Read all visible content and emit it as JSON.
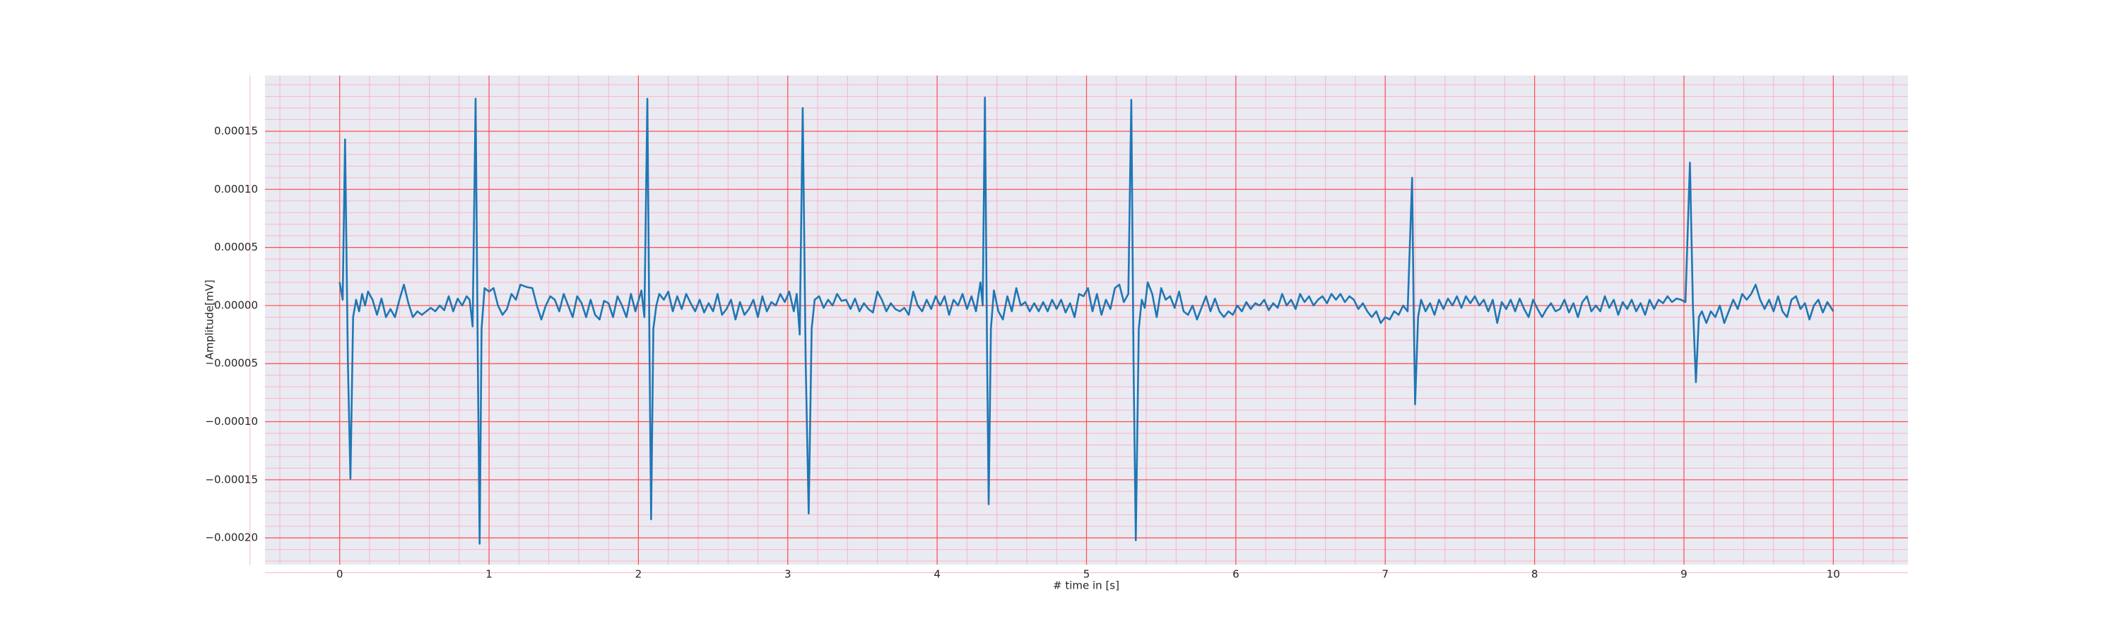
{
  "chart_data": {
    "type": "line",
    "x_label": "# time in [s]",
    "y_label": "Amplitude[mV]",
    "color": "#1f77b4",
    "grid": true,
    "grid_color": "#ff4d4d",
    "minor_grid_color": "#f7b6c8",
    "background": "#eaeaf2",
    "xlim": [
      -0.5,
      10.5
    ],
    "ylim": [
      -0.000223,
      0.000198
    ],
    "xticks": [
      0,
      1,
      2,
      3,
      4,
      5,
      6,
      7,
      8,
      9,
      10
    ],
    "yticks": [
      {
        "value": -0.0002,
        "label": "−0.00020"
      },
      {
        "value": -0.00015,
        "label": "−0.00015"
      },
      {
        "value": -0.0001,
        "label": "−0.00010"
      },
      {
        "value": -5e-05,
        "label": "−0.00005"
      },
      {
        "value": 0,
        "label": "0.00000"
      },
      {
        "value": 5e-05,
        "label": "0.00005"
      },
      {
        "value": 0.0001,
        "label": "0.00010"
      },
      {
        "value": 0.00015,
        "label": "0.00015"
      }
    ],
    "x": [
      0,
      0.02,
      0.036,
      0.055,
      0.072,
      0.09,
      0.11,
      0.13,
      0.15,
      0.17,
      0.19,
      0.22,
      0.25,
      0.28,
      0.31,
      0.34,
      0.37,
      0.4,
      0.43,
      0.46,
      0.49,
      0.52,
      0.55,
      0.58,
      0.61,
      0.64,
      0.67,
      0.7,
      0.73,
      0.76,
      0.79,
      0.82,
      0.85,
      0.87,
      0.89,
      0.91,
      0.925,
      0.937,
      0.95,
      0.97,
      1.0,
      1.03,
      1.06,
      1.09,
      1.12,
      1.15,
      1.18,
      1.21,
      1.25,
      1.29,
      1.32,
      1.35,
      1.38,
      1.41,
      1.44,
      1.47,
      1.5,
      1.53,
      1.56,
      1.59,
      1.62,
      1.65,
      1.68,
      1.71,
      1.74,
      1.77,
      1.8,
      1.83,
      1.86,
      1.89,
      1.92,
      1.95,
      1.98,
      2.02,
      2.04,
      2.06,
      2.075,
      2.085,
      2.1,
      2.12,
      2.14,
      2.17,
      2.2,
      2.23,
      2.26,
      2.29,
      2.32,
      2.35,
      2.38,
      2.41,
      2.44,
      2.47,
      2.5,
      2.53,
      2.56,
      2.59,
      2.62,
      2.65,
      2.68,
      2.71,
      2.74,
      2.77,
      2.8,
      2.83,
      2.86,
      2.89,
      2.92,
      2.95,
      2.98,
      3.01,
      3.04,
      3.06,
      3.08,
      3.1,
      3.12,
      3.14,
      3.16,
      3.18,
      3.21,
      3.24,
      3.27,
      3.3,
      3.33,
      3.36,
      3.39,
      3.42,
      3.45,
      3.48,
      3.51,
      3.54,
      3.57,
      3.6,
      3.63,
      3.66,
      3.69,
      3.72,
      3.75,
      3.78,
      3.81,
      3.84,
      3.87,
      3.9,
      3.93,
      3.96,
      3.99,
      4.02,
      4.05,
      4.08,
      4.11,
      4.14,
      4.17,
      4.2,
      4.23,
      4.26,
      4.29,
      4.305,
      4.32,
      4.335,
      4.345,
      4.36,
      4.38,
      4.41,
      4.44,
      4.47,
      4.5,
      4.53,
      4.56,
      4.59,
      4.62,
      4.65,
      4.68,
      4.71,
      4.74,
      4.77,
      4.8,
      4.83,
      4.86,
      4.89,
      4.92,
      4.95,
      4.98,
      5.01,
      5.04,
      5.07,
      5.1,
      5.13,
      5.16,
      5.19,
      5.22,
      5.25,
      5.28,
      5.3,
      5.315,
      5.33,
      5.35,
      5.37,
      5.39,
      5.41,
      5.44,
      5.47,
      5.5,
      5.53,
      5.56,
      5.59,
      5.62,
      5.65,
      5.68,
      5.71,
      5.74,
      5.77,
      5.8,
      5.83,
      5.86,
      5.89,
      5.92,
      5.95,
      5.98,
      6.01,
      6.04,
      6.07,
      6.1,
      6.13,
      6.16,
      6.19,
      6.22,
      6.25,
      6.28,
      6.31,
      6.34,
      6.37,
      6.4,
      6.43,
      6.46,
      6.49,
      6.52,
      6.55,
      6.58,
      6.61,
      6.64,
      6.67,
      6.7,
      6.73,
      6.76,
      6.79,
      6.82,
      6.85,
      6.88,
      6.91,
      6.94,
      6.97,
      7.0,
      7.03,
      7.06,
      7.09,
      7.12,
      7.15,
      7.18,
      7.19,
      7.2,
      7.22,
      7.24,
      7.27,
      7.3,
      7.33,
      7.36,
      7.39,
      7.42,
      7.45,
      7.48,
      7.51,
      7.54,
      7.57,
      7.6,
      7.63,
      7.66,
      7.69,
      7.72,
      7.75,
      7.78,
      7.81,
      7.84,
      7.87,
      7.9,
      7.93,
      7.96,
      7.99,
      8.02,
      8.05,
      8.08,
      8.11,
      8.14,
      8.17,
      8.2,
      8.23,
      8.26,
      8.29,
      8.32,
      8.35,
      8.38,
      8.41,
      8.44,
      8.47,
      8.5,
      8.53,
      8.56,
      8.59,
      8.62,
      8.65,
      8.68,
      8.71,
      8.74,
      8.77,
      8.8,
      8.83,
      8.86,
      8.89,
      8.92,
      8.95,
      8.98,
      9.01,
      9.04,
      9.06,
      9.08,
      9.1,
      9.12,
      9.15,
      9.18,
      9.21,
      9.24,
      9.27,
      9.3,
      9.33,
      9.36,
      9.39,
      9.42,
      9.45,
      9.48,
      9.51,
      9.54,
      9.57,
      9.6,
      9.63,
      9.66,
      9.69,
      9.72,
      9.75,
      9.78,
      9.81,
      9.84,
      9.87,
      9.9,
      9.93,
      9.96,
      10
    ],
    "values": [
      2e-05,
      5e-06,
      0.000143,
      -5e-05,
      -0.000149,
      -1e-05,
      5e-06,
      -5e-06,
      1e-05,
      0,
      1.2e-05,
      5e-06,
      -8e-06,
      6e-06,
      -1e-05,
      -3e-06,
      -1e-05,
      5e-06,
      1.8e-05,
      2e-06,
      -1e-05,
      -5e-06,
      -8e-06,
      -5e-06,
      -2e-06,
      -5e-06,
      0,
      -4e-06,
      8e-06,
      -5e-06,
      6e-06,
      0,
      8e-06,
      5e-06,
      -1.8e-05,
      0.000178,
      -5e-05,
      -0.000205,
      -2e-05,
      1.5e-05,
      1.2e-05,
      1.5e-05,
      0,
      -8e-06,
      -3e-06,
      1e-05,
      5e-06,
      1.8e-05,
      1.6e-05,
      1.5e-05,
      0,
      -1.2e-05,
      0,
      8e-06,
      5e-06,
      -5e-06,
      1e-05,
      0,
      -1e-05,
      8e-06,
      2e-06,
      -1e-05,
      5e-06,
      -8e-06,
      -1.2e-05,
      4e-06,
      2e-06,
      -1e-05,
      8e-06,
      0,
      -1e-05,
      1e-05,
      -5e-06,
      1.3e-05,
      -1e-05,
      0.000178,
      -5e-05,
      -0.000184,
      -2e-05,
      0,
      1e-05,
      5e-06,
      1.2e-05,
      -5e-06,
      8e-06,
      -3e-06,
      1e-05,
      2e-06,
      -5e-06,
      5e-06,
      -6e-06,
      2e-06,
      -5e-06,
      1e-05,
      -8e-06,
      -3e-06,
      5e-06,
      -1.2e-05,
      3e-06,
      -8e-06,
      -3e-06,
      5e-06,
      -1e-05,
      8e-06,
      -5e-06,
      3e-06,
      0,
      1e-05,
      3e-06,
      1.2e-05,
      -5e-06,
      1e-05,
      -2.5e-05,
      0.00017,
      -5e-05,
      -0.000179,
      -2e-05,
      5e-06,
      8e-06,
      -2e-06,
      5e-06,
      0,
      1e-05,
      4e-06,
      5e-06,
      -3e-06,
      6e-06,
      -5e-06,
      2e-06,
      -3e-06,
      -6e-06,
      1.2e-05,
      5e-06,
      -5e-06,
      2e-06,
      -3e-06,
      -5e-06,
      -2e-06,
      -8e-06,
      1.2e-05,
      0,
      -5e-06,
      5e-06,
      -3e-06,
      8e-06,
      0,
      8e-06,
      -8e-06,
      5e-06,
      0,
      1e-05,
      -3e-06,
      8e-06,
      -5e-06,
      2e-05,
      0,
      0.000179,
      -5e-05,
      -0.000171,
      -2e-05,
      1.3e-05,
      -5e-06,
      -1.2e-05,
      8e-06,
      -5e-06,
      1.5e-05,
      0,
      3e-06,
      -5e-06,
      2e-06,
      -5e-06,
      3e-06,
      -5e-06,
      5e-06,
      -3e-06,
      5e-06,
      -6e-06,
      2e-06,
      -1e-05,
      1e-05,
      8e-06,
      1.5e-05,
      -5e-06,
      1e-05,
      -8e-06,
      5e-06,
      -3e-06,
      1.5e-05,
      1.8e-05,
      3e-06,
      1e-05,
      0.000177,
      -5e-05,
      -0.000202,
      -2e-05,
      5e-06,
      -2e-06,
      2e-05,
      1e-05,
      -1e-05,
      1.5e-05,
      5e-06,
      8e-06,
      -2e-06,
      1.2e-05,
      -5e-06,
      -8e-06,
      0,
      -1.2e-05,
      -2e-06,
      8e-06,
      -5e-06,
      6e-06,
      -5e-06,
      -1e-05,
      -5e-06,
      -8e-06,
      0,
      -5e-06,
      3e-06,
      -3e-06,
      2e-06,
      0,
      5e-06,
      -4e-06,
      2e-06,
      -2e-06,
      1e-05,
      0,
      5e-06,
      -3e-06,
      1e-05,
      3e-06,
      8e-06,
      0,
      5e-06,
      8e-06,
      2e-06,
      1e-05,
      5e-06,
      1e-05,
      3e-06,
      8e-06,
      5e-06,
      -3e-06,
      2e-06,
      -5e-06,
      -1e-05,
      -5e-06,
      -1.5e-05,
      -1e-05,
      -1.2e-05,
      -5e-06,
      -8e-06,
      0,
      -5e-06,
      0.00011,
      0,
      -8.5e-05,
      -1e-05,
      5e-06,
      -5e-06,
      2e-06,
      -8e-06,
      5e-06,
      -3e-06,
      6e-06,
      0,
      8e-06,
      -2e-06,
      8e-06,
      2e-06,
      8e-06,
      0,
      5e-06,
      -5e-06,
      5e-06,
      -1.5e-05,
      3e-06,
      -3e-06,
      5e-06,
      -5e-06,
      6e-06,
      -3e-06,
      -1e-05,
      5e-06,
      -3e-06,
      -1e-05,
      -3e-06,
      2e-06,
      -5e-06,
      -3e-06,
      5e-06,
      -6e-06,
      2e-06,
      -1e-05,
      3e-06,
      8e-06,
      -5e-06,
      0,
      -5e-06,
      8e-06,
      -2e-06,
      5e-06,
      -8e-06,
      3e-06,
      -3e-06,
      5e-06,
      -5e-06,
      2e-06,
      -8e-06,
      5e-06,
      -3e-06,
      5e-06,
      2e-06,
      8e-06,
      3e-06,
      6e-06,
      5e-06,
      3e-06,
      0.000123,
      0,
      -6.6e-05,
      -1e-05,
      -5e-06,
      -1.5e-05,
      -5e-06,
      -1e-05,
      0,
      -1.5e-05,
      -5e-06,
      5e-06,
      -3e-06,
      1e-05,
      5e-06,
      1e-05,
      1.8e-05,
      5e-06,
      -3e-06,
      5e-06,
      -5e-06,
      8e-06,
      -5e-06,
      -1e-05,
      5e-06,
      8e-06,
      -3e-06,
      2e-06,
      -1.2e-05,
      0,
      5e-06,
      -6e-06,
      3e-06,
      -5e-06
    ]
  }
}
